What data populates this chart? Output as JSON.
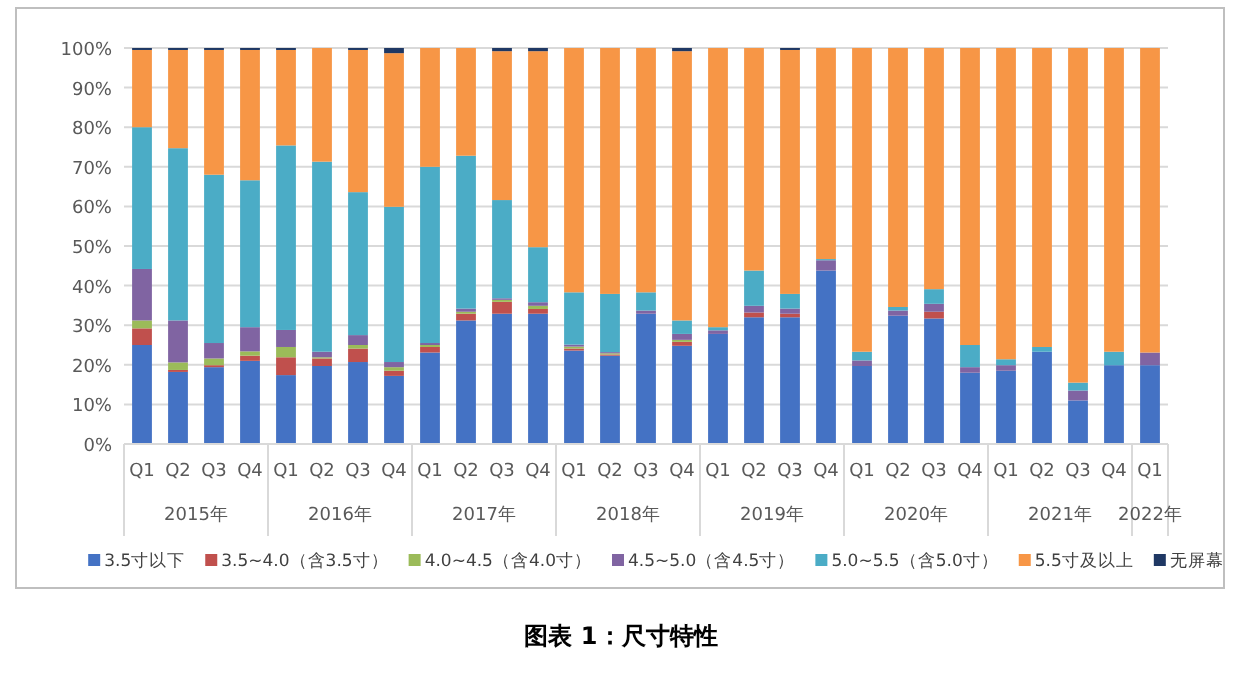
{
  "chart_data": {
    "type": "bar",
    "stacked": true,
    "title": "图表 1：尺寸特性",
    "categories": [
      "Q1",
      "Q2",
      "Q3",
      "Q4",
      "Q1",
      "Q2",
      "Q3",
      "Q4",
      "Q1",
      "Q2",
      "Q3",
      "Q4",
      "Q1",
      "Q2",
      "Q3",
      "Q4",
      "Q1",
      "Q2",
      "Q3",
      "Q4",
      "Q1",
      "Q2",
      "Q3",
      "Q4",
      "Q1",
      "Q2",
      "Q3",
      "Q4",
      "Q1"
    ],
    "annotations": [
      "2015年",
      "2016年",
      "2017年",
      "2018年",
      "2019年",
      "2020年",
      "2021年",
      "2022年"
    ],
    "series": [
      {
        "name": "3.5寸以下",
        "color": "#4472c4",
        "values": [
          25,
          18.2,
          19.4,
          21,
          17.4,
          19.7,
          20.7,
          17.2,
          23.1,
          31.2,
          32.9,
          32.9,
          23.6,
          22.3,
          32.9,
          24.8,
          27.8,
          32,
          32,
          43.8,
          19.7,
          32.4,
          31.7,
          18,
          18.5,
          23.3,
          11,
          19.9,
          19.9
        ]
      },
      {
        "name": "3.5~4.0（含3.5寸）",
        "color": "#c0504d",
        "values": [
          4.2,
          0.5,
          0.5,
          1.3,
          4.5,
          1.9,
          3.4,
          1.3,
          1.4,
          1.7,
          3,
          1.2,
          0.5,
          0.3,
          0,
          1,
          0,
          1.2,
          0.9,
          0,
          0,
          0,
          1.7,
          0,
          0,
          0,
          0,
          0,
          0
        ]
      },
      {
        "name": "4.0~4.5（含4.0寸）",
        "color": "#9bbb59",
        "values": [
          2,
          1.9,
          1.7,
          1.1,
          2.6,
          0.3,
          0.9,
          0.9,
          0.5,
          0.5,
          0.5,
          0.8,
          0.5,
          0.3,
          0,
          0.5,
          0,
          0,
          0,
          0,
          0,
          0,
          0,
          0,
          0,
          0,
          0,
          0,
          0
        ]
      },
      {
        "name": "4.5~5.0（含4.5寸）",
        "color": "#8064a2",
        "values": [
          13,
          10.6,
          3.9,
          6.1,
          4.3,
          1.4,
          2.5,
          1.3,
          0.5,
          0.8,
          0.4,
          0.9,
          0.5,
          0.3,
          0.8,
          1.5,
          0.9,
          1.7,
          1.3,
          2.6,
          1.4,
          1.3,
          2,
          1.4,
          1.4,
          0,
          2.5,
          0,
          3.2
        ]
      },
      {
        "name": "5.0~5.5（含5.0寸）",
        "color": "#4bacc6",
        "values": [
          35.8,
          43.5,
          42.5,
          37.1,
          46.6,
          48,
          36.1,
          39.2,
          44.5,
          38.6,
          24.8,
          13.9,
          13.2,
          14.7,
          4.6,
          3.4,
          0.8,
          8.9,
          3.7,
          0.3,
          2.2,
          0.9,
          3.7,
          5.6,
          1.5,
          1.2,
          2,
          3.4,
          0
        ]
      },
      {
        "name": "5.5寸及以上",
        "color": "#f79646",
        "values": [
          19.5,
          24.8,
          31.5,
          32.9,
          24.1,
          28.7,
          35.9,
          38.8,
          30,
          27.2,
          37.6,
          49.5,
          61.7,
          62.1,
          61.7,
          68,
          70.5,
          56.2,
          61.6,
          53.3,
          76.7,
          65.4,
          60.9,
          75,
          78.6,
          75.5,
          84.5,
          76.7,
          76.9
        ]
      },
      {
        "name": "无屏幕",
        "color": "#1f3864",
        "values": [
          0.5,
          0.5,
          0.5,
          0.5,
          0.5,
          0,
          0.5,
          1.3,
          0,
          0,
          0.8,
          0.8,
          0,
          0,
          0,
          0.8,
          0,
          0,
          0.5,
          0,
          0,
          0,
          0,
          0,
          0,
          0,
          0,
          0,
          0
        ]
      }
    ],
    "ylim": [
      0,
      100
    ],
    "yticks": [
      {
        "value": 0,
        "label": "0%"
      },
      {
        "value": 10,
        "label": "10%"
      },
      {
        "value": 20,
        "label": "20%"
      },
      {
        "value": 30,
        "label": "30%"
      },
      {
        "value": 40,
        "label": "40%"
      },
      {
        "value": 50,
        "label": "50%"
      },
      {
        "value": 60,
        "label": "60%"
      },
      {
        "value": 70,
        "label": "70%"
      },
      {
        "value": 80,
        "label": "80%"
      },
      {
        "value": 90,
        "label": "90%"
      },
      {
        "value": 100,
        "label": "100%"
      }
    ],
    "grid": "y",
    "legend": "bottom"
  }
}
